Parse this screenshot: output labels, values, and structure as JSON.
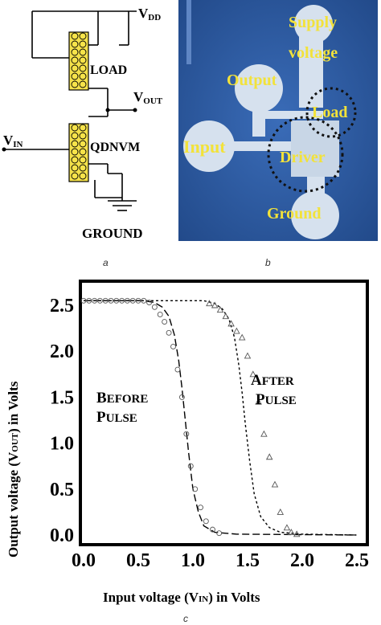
{
  "panels": {
    "a": "a",
    "b": "b",
    "c": "c"
  },
  "circuit": {
    "vdd": "V",
    "vdd_sub": "DD",
    "load": "LOAD",
    "vout": "V",
    "vout_sub": "OUT",
    "vin": "V",
    "vin_sub": "IN",
    "qdnvm": "QDNVM",
    "ground": "GROUND"
  },
  "photo": {
    "supply1": "Supply",
    "supply2": "voltage",
    "output": "Output",
    "load": "Load",
    "input": "Input",
    "driver": "Driver",
    "ground": "Ground",
    "colors": {
      "bg": "#2e5aa0",
      "label": "#f2e23a",
      "pad": "#d9e3ee"
    }
  },
  "chart_data": {
    "type": "line",
    "xlabel": "Input voltage (V IN) in Volts",
    "xlabel_parts": {
      "pre": "Input voltage (V",
      "sub": "IN",
      "post": ") in Volts"
    },
    "ylabel_parts": {
      "pre": "Output voltage (V",
      "sub": "OUT",
      "post": ") in Volts"
    },
    "xlim": [
      0.0,
      2.5
    ],
    "ylim": [
      0.0,
      2.5
    ],
    "xticks": [
      "0.0",
      "0.5",
      "1.0",
      "1.5",
      "2.0",
      "2.5"
    ],
    "yticks": [
      "0.0",
      "0.5",
      "1.0",
      "1.5",
      "2.0",
      "2.5"
    ],
    "annotations": [
      {
        "line1_cap": "B",
        "line1_rest": "EFORE",
        "line2_cap": "P",
        "line2_rest": "ULSE"
      },
      {
        "line1_cap": "A",
        "line1_rest": "FTER",
        "line2_cap": "P",
        "line2_rest": "ULSE"
      }
    ],
    "series": [
      {
        "style": "dashed",
        "x": [
          0.0,
          0.2,
          0.4,
          0.55,
          0.65,
          0.72,
          0.78,
          0.83,
          0.87,
          0.9,
          0.93,
          0.96,
          1.0,
          1.05,
          1.1,
          1.2,
          1.4,
          2.5
        ],
        "y": [
          2.55,
          2.55,
          2.55,
          2.55,
          2.53,
          2.48,
          2.38,
          2.18,
          1.9,
          1.6,
          1.25,
          0.9,
          0.5,
          0.25,
          0.1,
          0.03,
          0.01,
          0.0
        ]
      },
      {
        "style": "dotted",
        "x": [
          0.0,
          0.5,
          0.9,
          1.1,
          1.2,
          1.27,
          1.33,
          1.38,
          1.42,
          1.45,
          1.48,
          1.52,
          1.56,
          1.62,
          1.7,
          1.8,
          2.0,
          2.5
        ],
        "y": [
          2.55,
          2.55,
          2.55,
          2.55,
          2.52,
          2.46,
          2.35,
          2.15,
          1.85,
          1.55,
          1.2,
          0.8,
          0.45,
          0.2,
          0.08,
          0.03,
          0.01,
          0.0
        ]
      },
      {
        "marker": "circle",
        "x": [
          0.0,
          0.05,
          0.1,
          0.15,
          0.2,
          0.25,
          0.3,
          0.35,
          0.4,
          0.45,
          0.5,
          0.55,
          0.6,
          0.65,
          0.7,
          0.74,
          0.78,
          0.82,
          0.86,
          0.9,
          0.94,
          0.98,
          1.02,
          1.07,
          1.12,
          1.18,
          1.24
        ],
        "y": [
          2.55,
          2.55,
          2.55,
          2.55,
          2.55,
          2.55,
          2.55,
          2.55,
          2.55,
          2.55,
          2.55,
          2.55,
          2.53,
          2.48,
          2.4,
          2.32,
          2.2,
          2.05,
          1.8,
          1.5,
          1.1,
          0.75,
          0.5,
          0.3,
          0.15,
          0.06,
          0.02
        ]
      },
      {
        "marker": "triangle",
        "x": [
          1.15,
          1.2,
          1.25,
          1.3,
          1.35,
          1.4,
          1.45,
          1.5,
          1.55,
          1.6,
          1.65,
          1.7,
          1.75,
          1.8,
          1.86,
          1.9,
          1.95
        ],
        "y": [
          2.52,
          2.5,
          2.45,
          2.38,
          2.3,
          2.22,
          2.15,
          1.95,
          1.75,
          1.45,
          1.1,
          0.85,
          0.55,
          0.25,
          0.08,
          0.03,
          0.01
        ]
      }
    ]
  }
}
